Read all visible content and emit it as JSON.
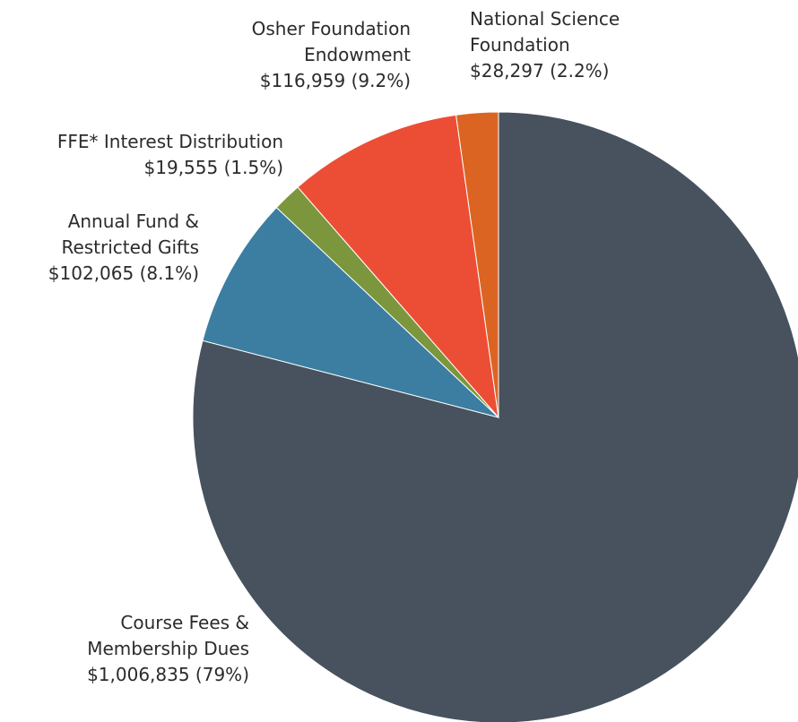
{
  "chart_data": {
    "type": "pie",
    "slices": [
      {
        "label_lines": [
          "Course Fees &",
          "Membership Dues"
        ],
        "value": 1006835,
        "value_text": "$1,006,835 (79%)",
        "percent": 79.0,
        "color": "#47525e"
      },
      {
        "label_lines": [
          "Annual Fund &",
          "Restricted Gifts"
        ],
        "value": 102065,
        "value_text": "$102,065 (8.1%)",
        "percent": 8.1,
        "color": "#3b7ea1"
      },
      {
        "label_lines": [
          "FFE* Interest Distribution"
        ],
        "value": 19555,
        "value_text": "$19,555 (1.5%)",
        "percent": 1.5,
        "color": "#7b963c"
      },
      {
        "label_lines": [
          "Osher Foundation",
          "Endowment"
        ],
        "value": 116959,
        "value_text": "$116,959 (9.2%)",
        "percent": 9.2,
        "color": "#ec4e35"
      },
      {
        "label_lines": [
          "National Science",
          "Foundation"
        ],
        "value": 28297,
        "value_text": "$28,297 (2.2%)",
        "percent": 2.2,
        "color": "#dc6422"
      }
    ]
  }
}
